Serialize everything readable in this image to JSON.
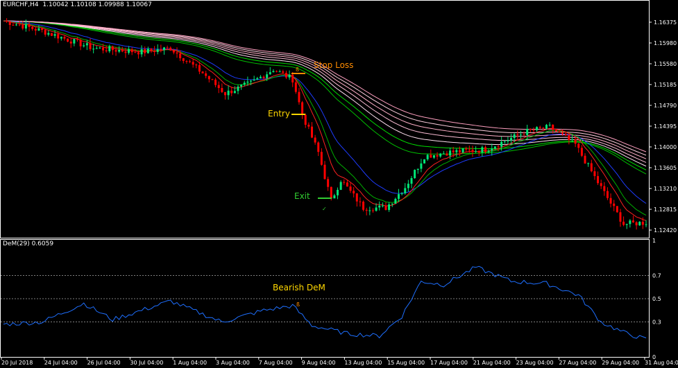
{
  "header": {
    "symbol": "EURCHF,H4",
    "ohlc": "1.10042 1.10108 1.09988 1.10067"
  },
  "indicator": {
    "label": "DeM(29) 0.6059"
  },
  "annotations": {
    "stop_loss": "Stop Loss",
    "entry": "Entry",
    "exit": "Exit",
    "bearish_dem": "Bearish DeM"
  },
  "colors": {
    "bull": "#00e676",
    "bear": "#ff0000",
    "stop": "#ff8c00",
    "entry": "#ffd700",
    "exit": "#32cd32",
    "dem": "#1e6fff"
  },
  "chart_data": [
    {
      "type": "candlestick",
      "title": "EURCHF,H4",
      "y_ticks": [
        "1.16375",
        "1.15980",
        "1.15580",
        "1.15185",
        "1.14790",
        "1.14395",
        "1.14000",
        "1.13605",
        "1.13210",
        "1.12815",
        "1.12420"
      ],
      "ylim": [
        1.122,
        1.1666
      ],
      "x_ticks": [
        "20 Jul 2018",
        "24 Jul 04:00",
        "26 Jul 04:00",
        "30 Jul 04:00",
        "1 Aug 04:00",
        "3 Aug 04:00",
        "7 Aug 04:00",
        "9 Aug 04:00",
        "13 Aug 04:00",
        "15 Aug 04:00",
        "17 Aug 04:00",
        "21 Aug 04:00",
        "23 Aug 04:00",
        "27 Aug 04:00",
        "29 Aug 04:00",
        "31 Aug 04:00"
      ],
      "close_path": {
        "bar": [
          0,
          12,
          28,
          43,
          52,
          62,
          69,
          77,
          84,
          90,
          93,
          98,
          100,
          102,
          105,
          112,
          119,
          125,
          131,
          138,
          150,
          163,
          170,
          178,
          185,
          193,
          200
        ],
        "price": [
          1.164,
          1.1621,
          1.1588,
          1.1581,
          1.1588,
          1.1541,
          1.1502,
          1.1522,
          1.1548,
          1.1529,
          1.1462,
          1.139,
          1.1344,
          1.1298,
          1.1338,
          1.1285,
          1.1285,
          1.1324,
          1.1383,
          1.139,
          1.1396,
          1.143,
          1.1438,
          1.1405,
          1.1333,
          1.1254,
          1.1257
        ]
      }
    },
    {
      "type": "line",
      "title": "DeM(29) 0.6059",
      "y_ticks": [
        "1",
        "0.7",
        "0.5",
        "0.3",
        "0"
      ],
      "ylim": [
        0,
        1
      ],
      "levels": [
        0.7,
        0.5,
        0.3
      ],
      "series": {
        "bar": [
          0,
          12,
          25,
          34,
          52,
          68,
          81,
          90,
          96,
          107,
          117,
          124,
          130,
          137,
          147,
          158,
          169,
          179,
          186,
          193,
          200
        ],
        "value": [
          0.28,
          0.3,
          0.46,
          0.32,
          0.48,
          0.3,
          0.4,
          0.44,
          0.27,
          0.2,
          0.18,
          0.35,
          0.65,
          0.62,
          0.77,
          0.65,
          0.63,
          0.53,
          0.3,
          0.21,
          0.15
        ]
      }
    }
  ]
}
